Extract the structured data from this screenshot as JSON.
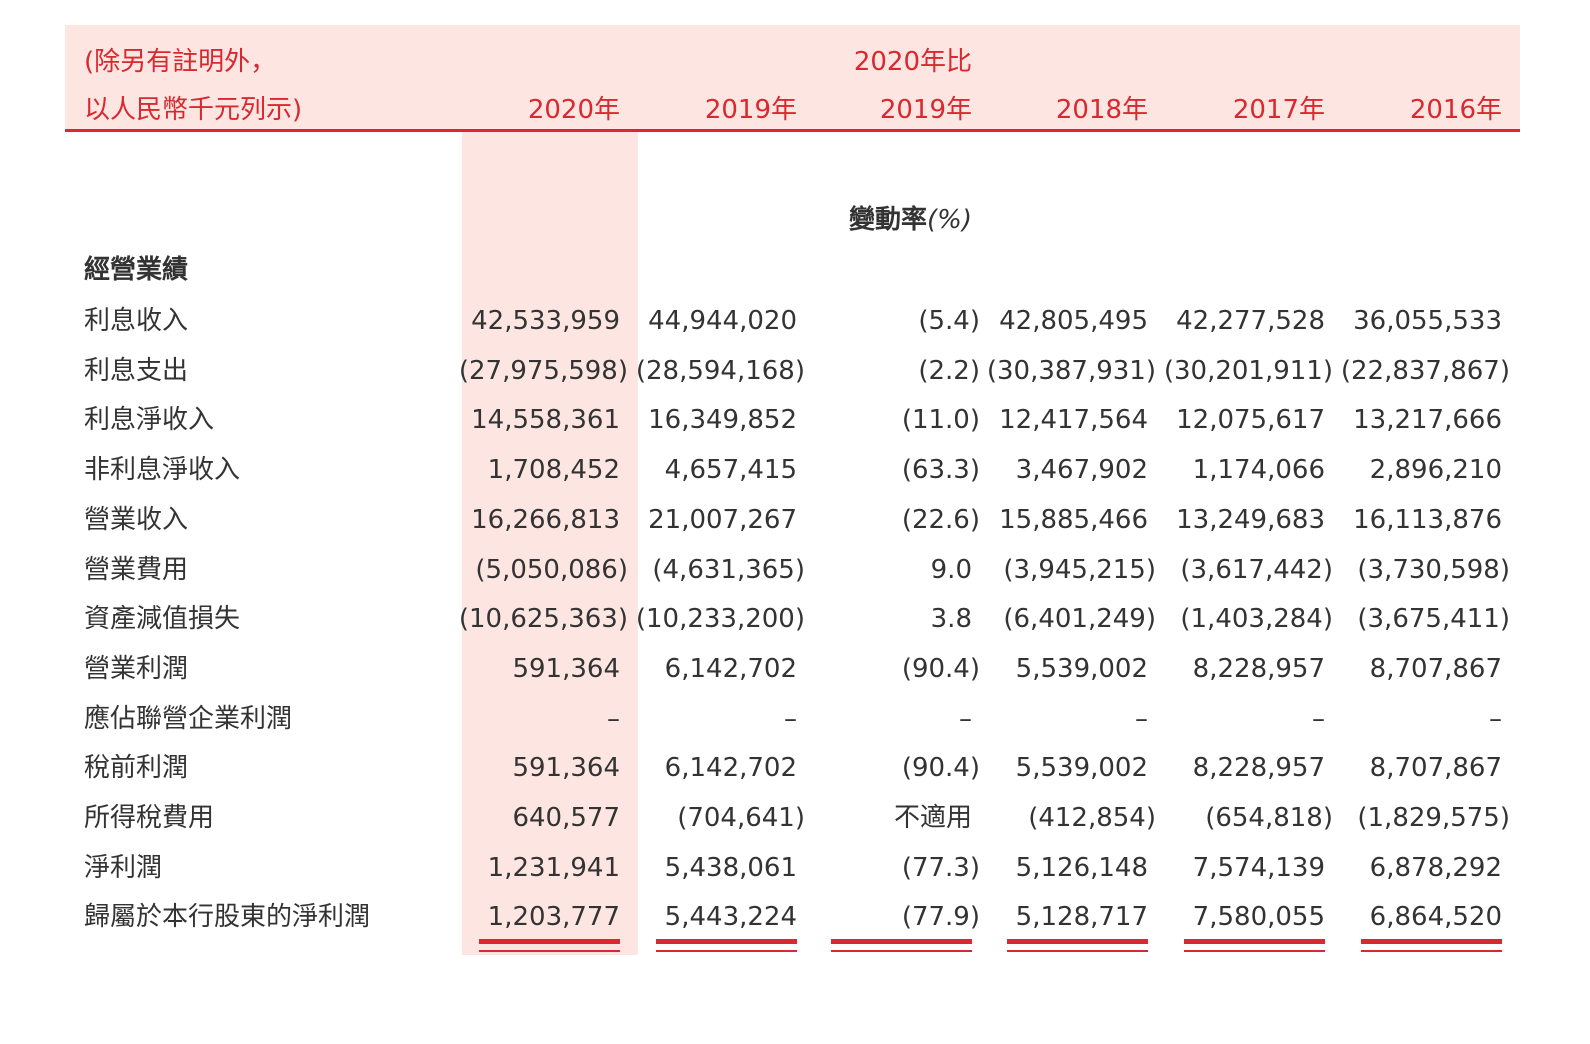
{
  "header": {
    "note_lines": [
      "(除另有註明外，",
      "以人民幣千元列示)"
    ],
    "compare_top": "2020年比",
    "columns": [
      "2020年",
      "2019年",
      "2019年",
      "2018年",
      "2017年",
      "2016年"
    ]
  },
  "change_label": "變動率",
  "change_unit": "(%)",
  "section": "經營業績",
  "table": {
    "rows": [
      [
        "利息收入",
        "42,533,959",
        "44,944,020",
        "(5.4)",
        "42,805,495",
        "42,277,528",
        "36,055,533"
      ],
      [
        "利息支出",
        "(27,975,598)",
        "(28,594,168)",
        "(2.2)",
        "(30,387,931)",
        "(30,201,911)",
        "(22,837,867)"
      ],
      [
        "利息淨收入",
        "14,558,361",
        "16,349,852",
        "(11.0)",
        "12,417,564",
        "12,075,617",
        "13,217,666"
      ],
      [
        "非利息淨收入",
        "1,708,452",
        "4,657,415",
        "(63.3)",
        "3,467,902",
        "1,174,066",
        "2,896,210"
      ],
      [
        "營業收入",
        "16,266,813",
        "21,007,267",
        "(22.6)",
        "15,885,466",
        "13,249,683",
        "16,113,876"
      ],
      [
        "營業費用",
        "(5,050,086)",
        "(4,631,365)",
        "9.0",
        "(3,945,215)",
        "(3,617,442)",
        "(3,730,598)"
      ],
      [
        "資產減值損失",
        "(10,625,363)",
        "(10,233,200)",
        "3.8",
        "(6,401,249)",
        "(1,403,284)",
        "(3,675,411)"
      ],
      [
        "營業利潤",
        "591,364",
        "6,142,702",
        "(90.4)",
        "5,539,002",
        "8,228,957",
        "8,707,867"
      ],
      [
        "應佔聯營企業利潤",
        "–",
        "–",
        "–",
        "–",
        "–",
        "–"
      ],
      [
        "稅前利潤",
        "591,364",
        "6,142,702",
        "(90.4)",
        "5,539,002",
        "8,228,957",
        "8,707,867"
      ],
      [
        "所得稅費用",
        "640,577",
        "(704,641)",
        "不適用",
        "(412,854)",
        "(654,818)",
        "(1,829,575)"
      ],
      [
        "淨利潤",
        "1,231,941",
        "5,438,061",
        "(77.3)",
        "5,126,148",
        "7,574,139",
        "6,878,292"
      ],
      [
        "歸屬於本行股東的淨利潤",
        "1,203,777",
        "5,443,224",
        "(77.9)",
        "5,128,717",
        "7,580,055",
        "6,864,520"
      ]
    ]
  }
}
